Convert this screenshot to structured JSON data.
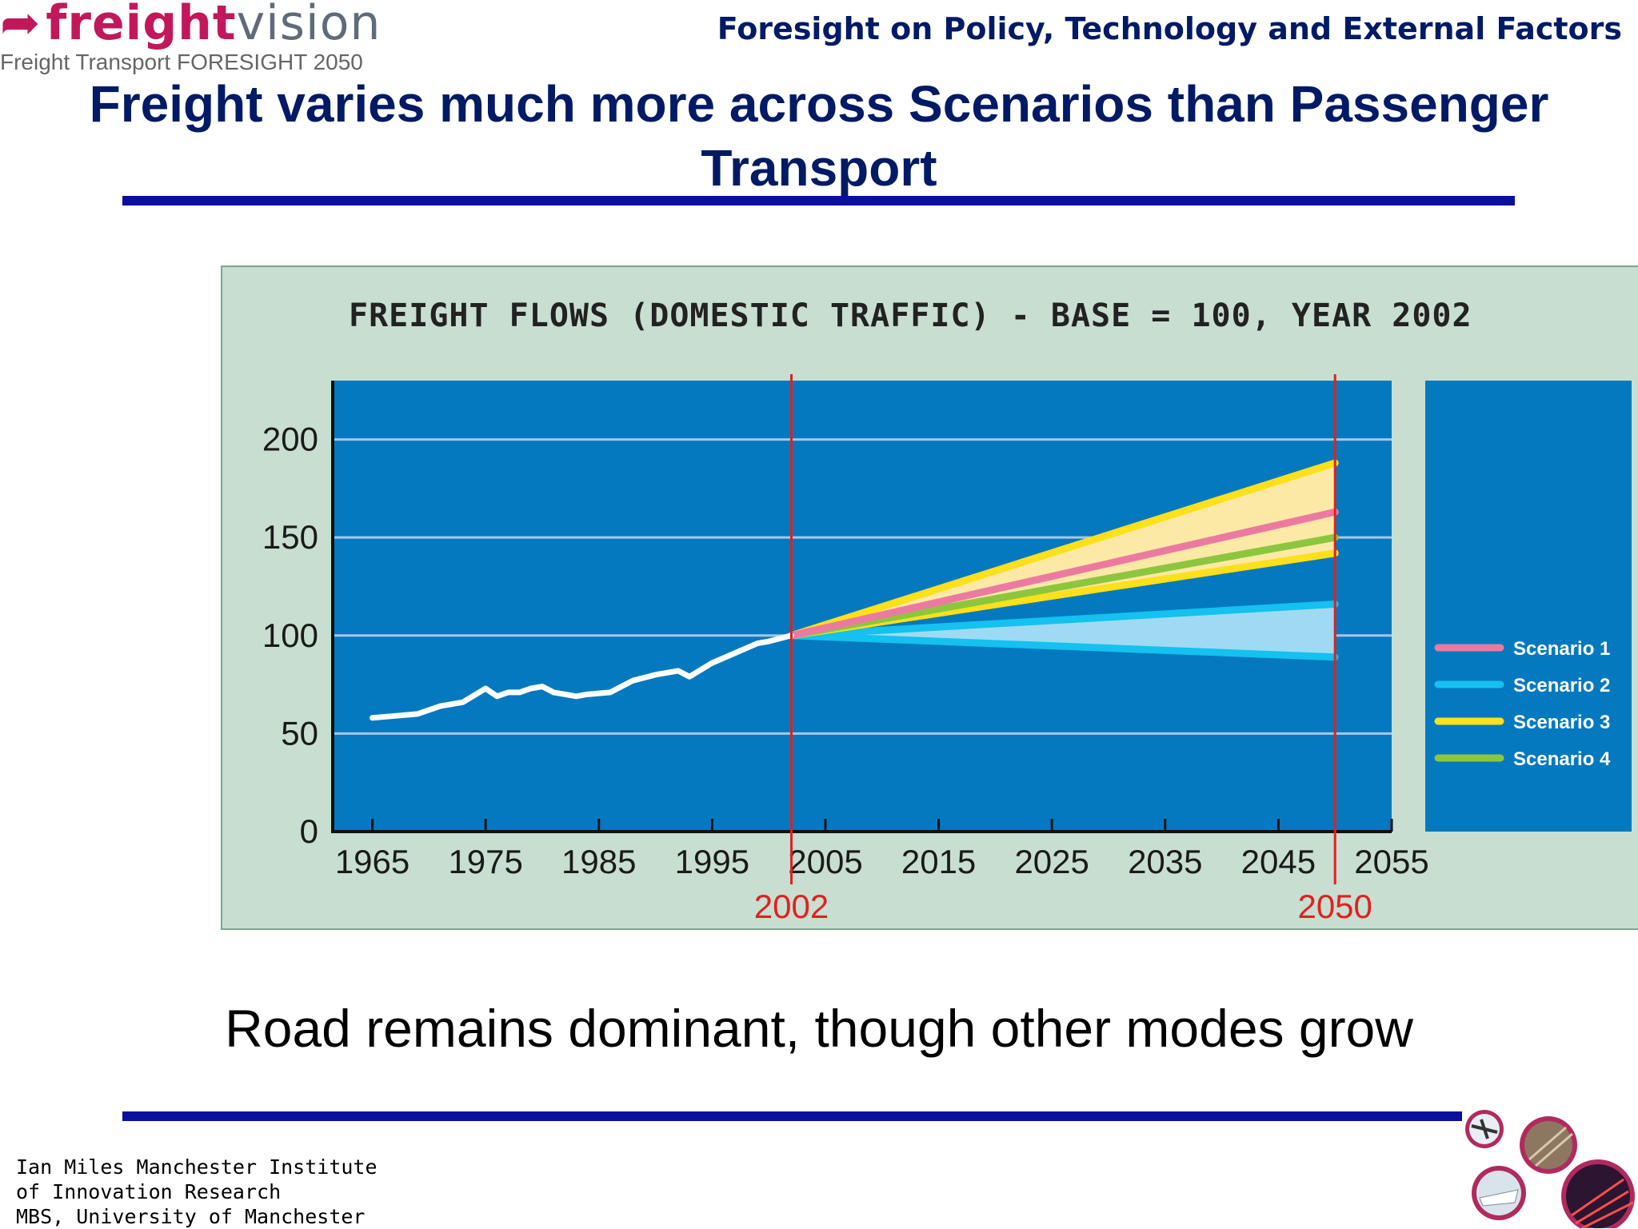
{
  "logo": {
    "word_a": "freight",
    "word_b": "vision",
    "subtitle": "Freight Transport FORESIGHT 2050"
  },
  "header": {
    "subtitle": "Foresight on Policy, Technology and External Factors"
  },
  "slide": {
    "title": "Freight varies much more across Scenarios than Passenger Transport",
    "caption": "Road remains dominant, though other modes grow"
  },
  "footer": {
    "line1": "Ian Miles Manchester Institute",
    "line2": "of Innovation Research",
    "line3": "MBS, University of Manchester"
  },
  "colors": {
    "plot_bg": "#0579bf",
    "legend_bg": "#0579bf",
    "panel_bg": "#c8ded1",
    "historical": "#ffffff",
    "marker": "#e0211f",
    "scenario1": "#ec7aa0",
    "scenario2": "#14c1ef",
    "scenario3": "#ffe01a",
    "scenario4": "#8cc63f",
    "fan_freight": "#fde9a6",
    "fan_passenger": "#9fdaf4"
  },
  "chart_data": {
    "type": "line",
    "title": "FREIGHT FLOWS (DOMESTIC TRAFFIC) - BASE = 100, YEAR 2002",
    "xlabel": "",
    "ylabel": "",
    "xlim": [
      1961.5,
      2055
    ],
    "ylim": [
      0,
      230
    ],
    "x_ticks": [
      1965,
      1975,
      1985,
      1995,
      2005,
      2015,
      2025,
      2035,
      2045,
      2055
    ],
    "y_ticks": [
      0,
      50,
      100,
      150,
      200
    ],
    "grid": "horizontal",
    "legend_position": "right",
    "markers": [
      {
        "year": 2002,
        "label": "2002"
      },
      {
        "year": 2050,
        "label": "2050"
      }
    ],
    "historical": {
      "x": [
        1965,
        1967,
        1969,
        1971,
        1973,
        1975,
        1976,
        1977,
        1978,
        1979,
        1980,
        1981,
        1982,
        1983,
        1984,
        1986,
        1988,
        1990,
        1992,
        1993,
        1995,
        1997,
        1999,
        2000,
        2002
      ],
      "y": [
        58,
        59,
        60,
        64,
        66,
        73,
        69,
        71,
        71,
        73,
        74,
        71,
        70,
        69,
        70,
        71,
        77,
        80,
        82,
        79,
        86,
        91,
        96,
        97,
        100
      ]
    },
    "series": [
      {
        "name": "Scenario 1",
        "x": [
          2002,
          2050
        ],
        "y": [
          100,
          163
        ]
      },
      {
        "name": "Scenario 2",
        "x": [
          2002,
          2050
        ],
        "y": [
          100,
          116
        ],
        "y_low": [
          100,
          89
        ]
      },
      {
        "name": "Scenario 3",
        "x": [
          2002,
          2050
        ],
        "y": [
          100,
          188
        ],
        "y_low": [
          100,
          142
        ]
      },
      {
        "name": "Scenario 4",
        "x": [
          2002,
          2050
        ],
        "y": [
          100,
          150
        ]
      }
    ]
  }
}
